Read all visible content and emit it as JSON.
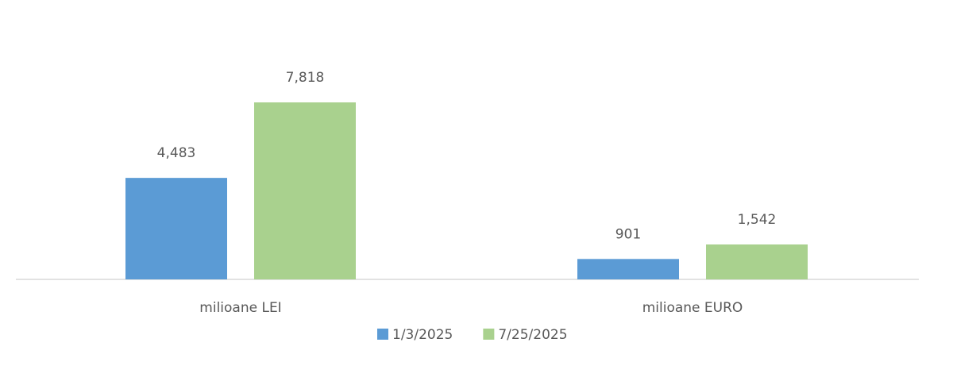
{
  "chart_data": {
    "type": "bar",
    "categories": [
      "milioane LEI",
      "milioane EURO"
    ],
    "series": [
      {
        "name": "1/3/2025",
        "color": "#5b9bd5",
        "values": [
          4483,
          901
        ],
        "value_labels": [
          "4,483",
          "901"
        ]
      },
      {
        "name": "7/25/2025",
        "color": "#a9d18e",
        "values": [
          7818,
          1542
        ],
        "value_labels": [
          "7,818",
          "1,542"
        ]
      }
    ],
    "legend": "bottom"
  }
}
